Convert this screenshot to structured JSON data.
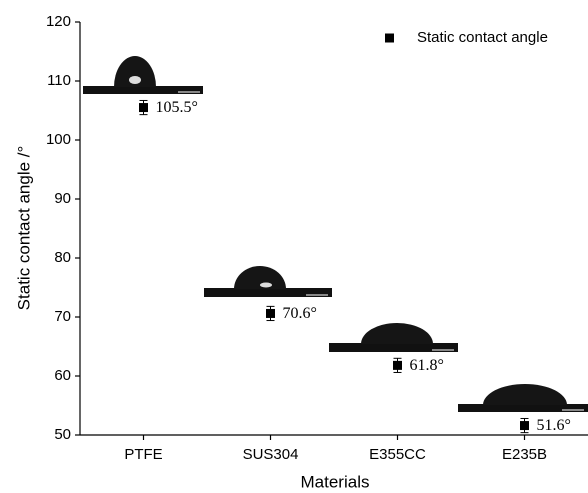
{
  "chart_data": {
    "type": "scatter",
    "x_label": "Materials",
    "y_label": "Static contact angle /°",
    "categories": [
      "PTFE",
      "SUS304",
      "E355CC",
      "E235B"
    ],
    "series": [
      {
        "name": "Static contact angle",
        "color": "#000000",
        "values": [
          105.5,
          70.6,
          61.8,
          51.6
        ],
        "errors": [
          1.2,
          1.2,
          1.2,
          1.2
        ],
        "value_labels": [
          "105.5°",
          "70.6°",
          "61.8°",
          "51.6°"
        ]
      }
    ],
    "ylim": [
      50,
      120
    ],
    "yticks": [
      50,
      60,
      70,
      80,
      90,
      100,
      110,
      120
    ],
    "legend": "upper right"
  }
}
